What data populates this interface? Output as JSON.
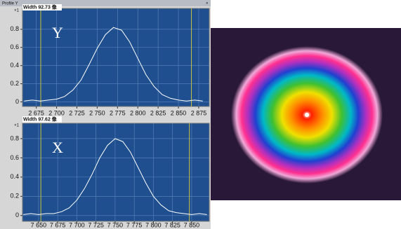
{
  "window_title": "Profile Y",
  "chart_data": [
    {
      "type": "line",
      "subtitle": "Width 92.73 像",
      "annotation": "Y",
      "y_multiplier": "×1",
      "x": [
        2660,
        2670,
        2680,
        2690,
        2700,
        2710,
        2720,
        2730,
        2740,
        2750,
        2760,
        2770,
        2780,
        2790,
        2800,
        2810,
        2820,
        2830,
        2840,
        2850,
        2860,
        2870,
        2880
      ],
      "series": [
        {
          "color": "#ffffff",
          "values": [
            0.01,
            0.02,
            0.01,
            0.02,
            0.03,
            0.06,
            0.13,
            0.24,
            0.41,
            0.59,
            0.74,
            0.82,
            0.79,
            0.66,
            0.48,
            0.3,
            0.17,
            0.08,
            0.04,
            0.02,
            0.01,
            0.02,
            0.01
          ]
        }
      ],
      "xlim": [
        2658,
        2888
      ],
      "ylim": [
        -0.05,
        1.03
      ],
      "xticks": [
        {
          "value": 2675,
          "label": "2 675"
        },
        {
          "value": 2700,
          "label": "2 700"
        },
        {
          "value": 2725,
          "label": "2 725"
        },
        {
          "value": 2750,
          "label": "2 750"
        },
        {
          "value": 2775,
          "label": "2 775"
        },
        {
          "value": 2800,
          "label": "2 800"
        },
        {
          "value": 2825,
          "label": "2 825"
        },
        {
          "value": 2850,
          "label": "2 850"
        },
        {
          "value": 2875,
          "label": "2 875"
        }
      ],
      "yticks": [
        0,
        0.2,
        0.4,
        0.6,
        0.8
      ],
      "markers": [
        2680.5,
        2866
      ],
      "marker_color": "#c8c040",
      "grid": true,
      "background": "#1f4f8f"
    },
    {
      "type": "line",
      "subtitle": "Width 97.62 像",
      "annotation": "X",
      "y_multiplier": "×1",
      "x": [
        7630,
        7640,
        7650,
        7660,
        7670,
        7680,
        7690,
        7700,
        7710,
        7720,
        7730,
        7740,
        7750,
        7760,
        7770,
        7780,
        7790,
        7800,
        7810,
        7820,
        7830,
        7840,
        7850,
        7860,
        7870
      ],
      "series": [
        {
          "color": "#ffffff",
          "values": [
            0.01,
            0.02,
            0.01,
            0.02,
            0.02,
            0.04,
            0.08,
            0.16,
            0.28,
            0.43,
            0.6,
            0.73,
            0.8,
            0.77,
            0.66,
            0.5,
            0.34,
            0.2,
            0.11,
            0.05,
            0.03,
            0.02,
            0.01,
            0.02,
            0.01
          ]
        }
      ],
      "xlim": [
        7629,
        7873
      ],
      "ylim": [
        -0.06,
        0.96
      ],
      "xticks": [
        {
          "value": 7650,
          "label": "7 650"
        },
        {
          "value": 7675,
          "label": "7 675"
        },
        {
          "value": 7700,
          "label": "7 700"
        },
        {
          "value": 7725,
          "label": "7 725"
        },
        {
          "value": 7750,
          "label": "7 750"
        },
        {
          "value": 7775,
          "label": "7 775"
        },
        {
          "value": 7800,
          "label": "7 800"
        },
        {
          "value": 7825,
          "label": "7 825"
        },
        {
          "value": 7850,
          "label": "7 850"
        }
      ],
      "yticks": [
        0,
        0.2,
        0.4,
        0.6,
        0.8
      ],
      "markers": [
        7653,
        7847
      ],
      "marker_color": "#c8c040",
      "grid": true,
      "background": "#1f4f8f"
    }
  ]
}
